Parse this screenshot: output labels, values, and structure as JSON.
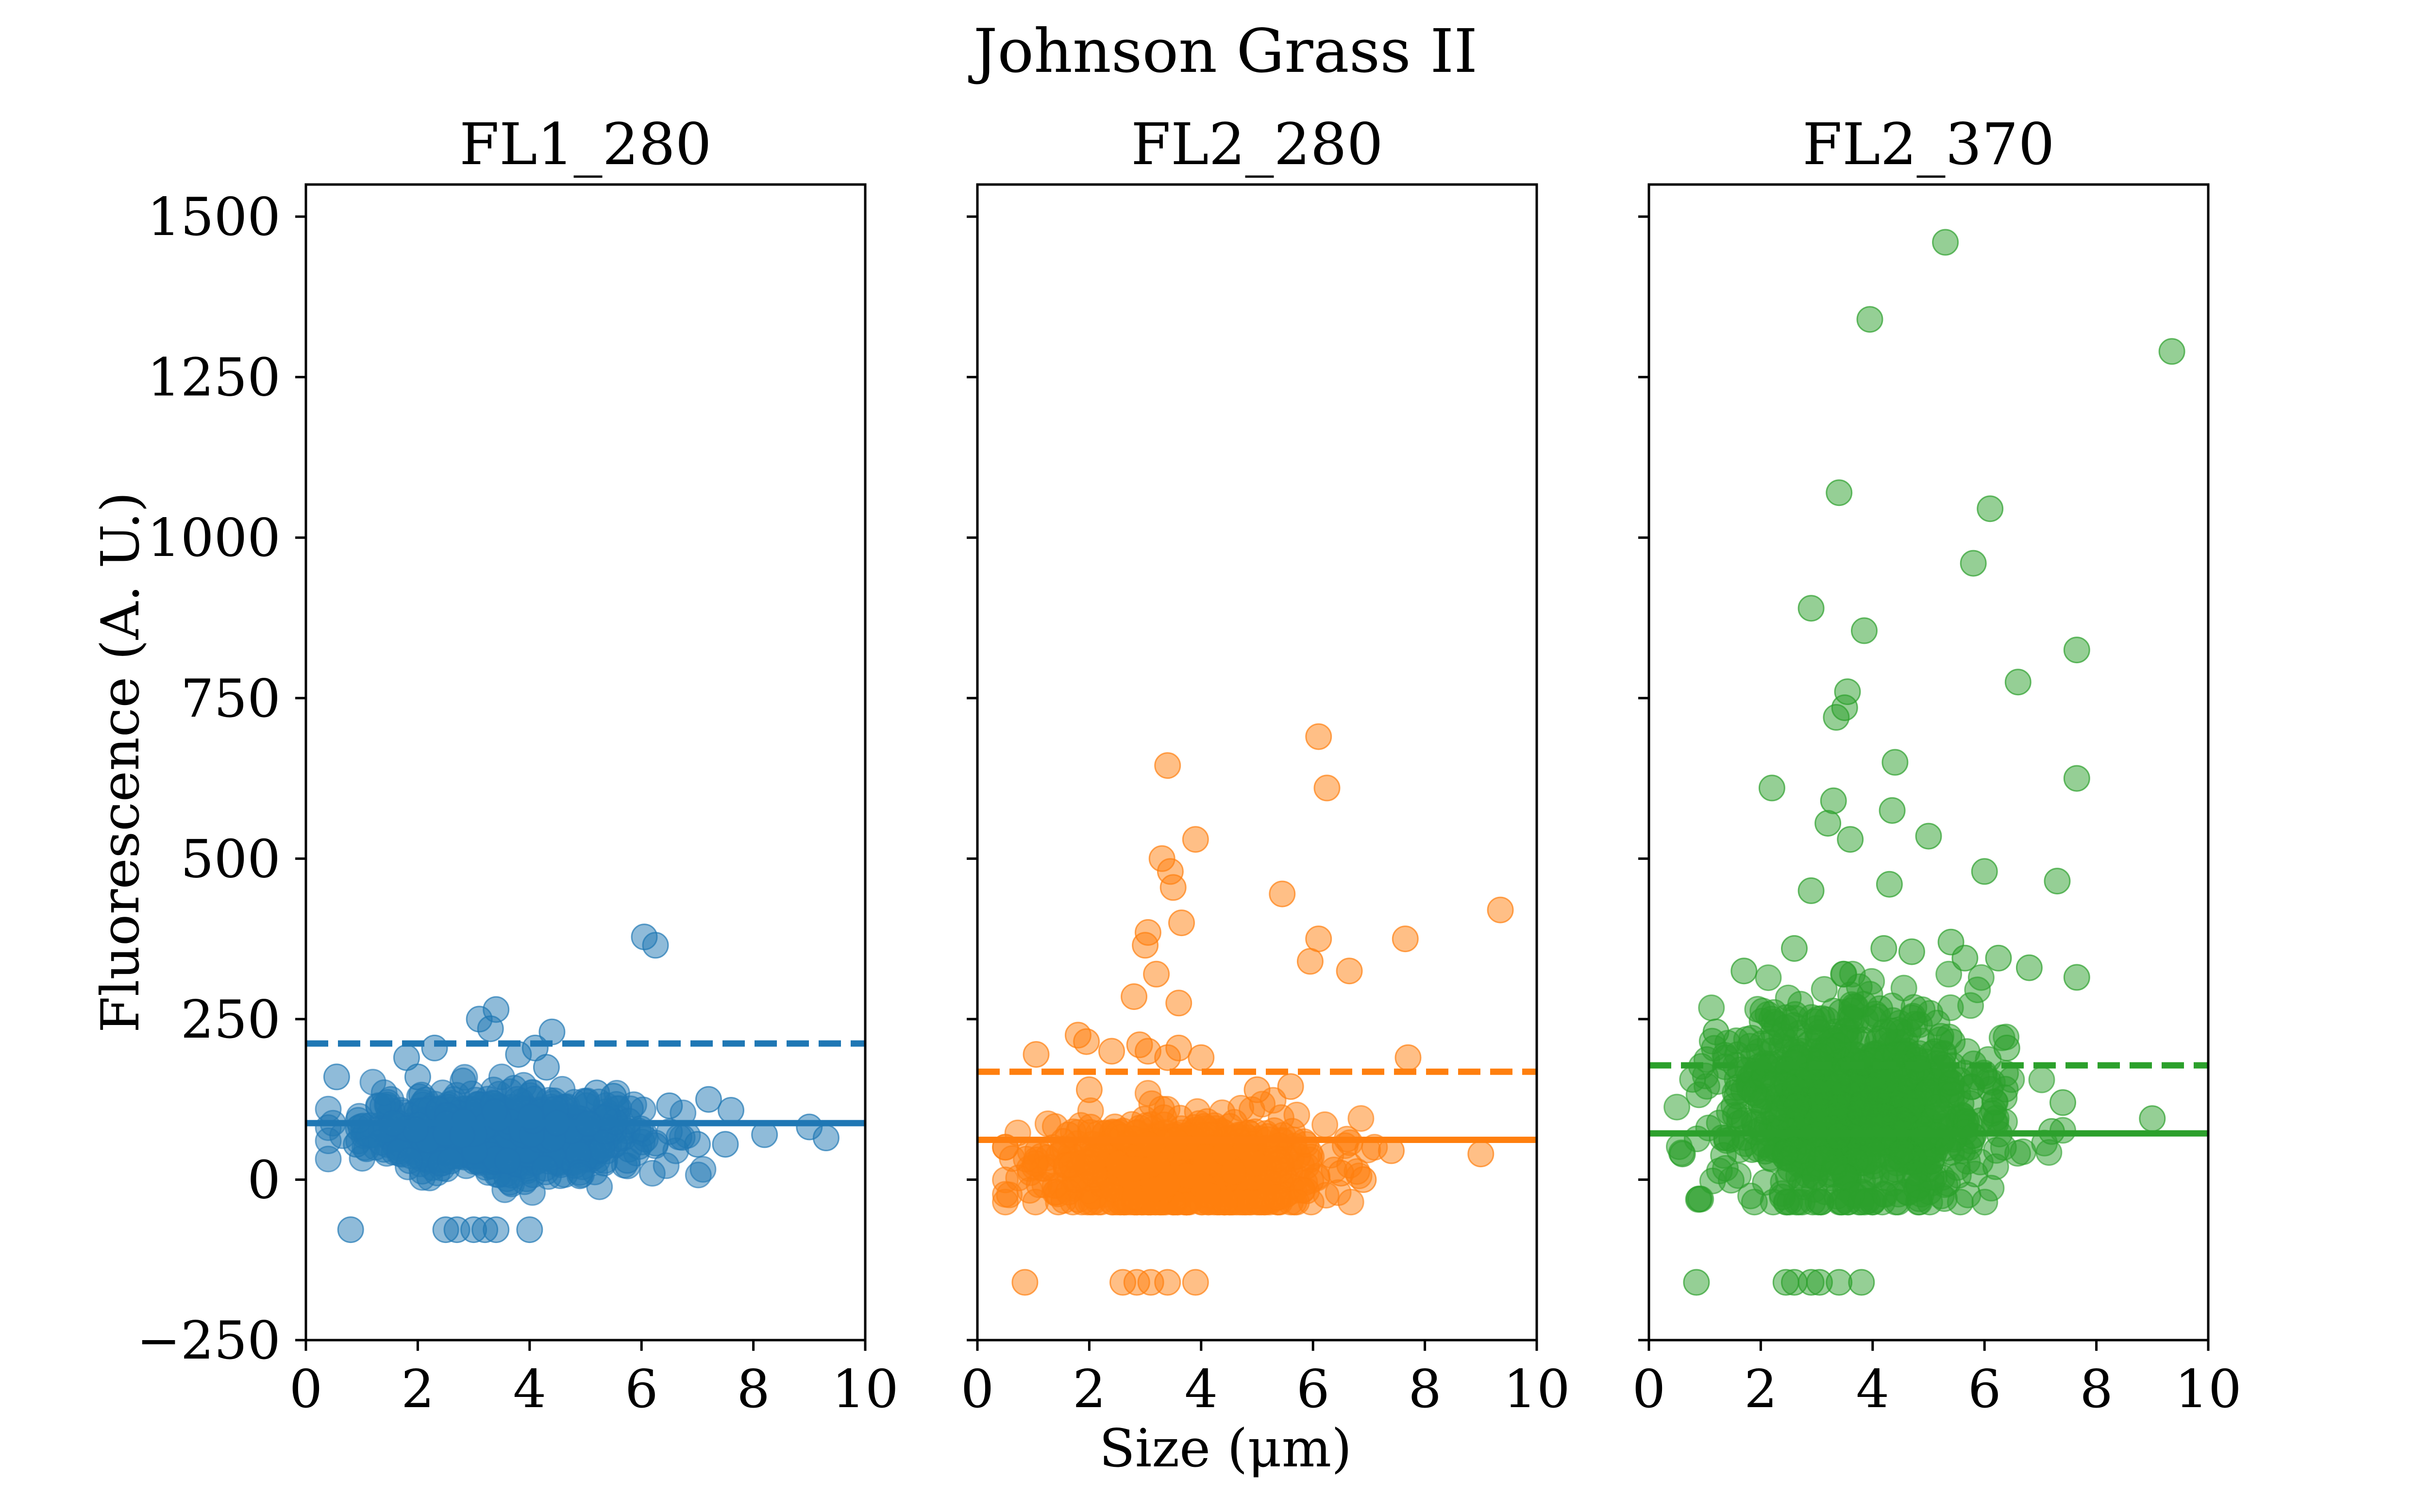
{
  "figure": {
    "title": "Johnson Grass II",
    "xlabel": "Size (μm)",
    "ylabel": "Fluorescence (A. U.)"
  },
  "chart_data": [
    {
      "type": "scatter",
      "title": "FL1_280",
      "color": "#1f77b4",
      "xlim": [
        0,
        10
      ],
      "ylim": [
        -250,
        1550
      ],
      "xticks": [
        0,
        2,
        4,
        6,
        8,
        10
      ],
      "yticks": [
        -250,
        0,
        250,
        500,
        750,
        1000,
        1250,
        1500
      ],
      "xticklabels": [
        "0",
        "2",
        "4",
        "6",
        "8",
        "10"
      ],
      "yticklabels": [
        "−250",
        "0",
        "250",
        "500",
        "750",
        "1000",
        "1250",
        "1500"
      ],
      "solid_line_y": 88,
      "dashed_line_y": 212,
      "cluster": {
        "x_center": 3.5,
        "x_spread": 1.2,
        "x_min": 0.4,
        "x_max": 7.8,
        "y_center": 70,
        "y_spread": 30,
        "y_min": -20,
        "y_max": 160,
        "count": 850
      },
      "points": [
        [
          0.55,
          160
        ],
        [
          0.8,
          -78
        ],
        [
          1.8,
          190
        ],
        [
          2.0,
          160
        ],
        [
          2.3,
          205
        ],
        [
          3.1,
          250
        ],
        [
          3.4,
          265
        ],
        [
          3.3,
          235
        ],
        [
          4.1,
          205
        ],
        [
          4.4,
          230
        ],
        [
          4.3,
          175
        ],
        [
          3.8,
          195
        ],
        [
          2.5,
          -78
        ],
        [
          2.7,
          -78
        ],
        [
          3.0,
          -78
        ],
        [
          3.2,
          -78
        ],
        [
          3.4,
          -78
        ],
        [
          4.0,
          -78
        ],
        [
          6.05,
          378
        ],
        [
          6.25,
          365
        ],
        [
          7.2,
          125
        ],
        [
          7.6,
          108
        ],
        [
          7.0,
          55
        ],
        [
          7.5,
          55
        ],
        [
          8.2,
          70
        ],
        [
          9.0,
          82
        ],
        [
          9.3,
          65
        ],
        [
          0.9,
          55
        ],
        [
          1.2,
          70
        ],
        [
          5.5,
          130
        ],
        [
          6.5,
          115
        ],
        [
          5.2,
          135
        ]
      ]
    },
    {
      "type": "scatter",
      "title": "FL2_280",
      "color": "#ff7f0e",
      "xlim": [
        0,
        10
      ],
      "ylim": [
        -250,
        1550
      ],
      "xticks": [
        0,
        2,
        4,
        6,
        8,
        10
      ],
      "yticks": [
        -250,
        0,
        250,
        500,
        750,
        1000,
        1250,
        1500
      ],
      "xticklabels": [
        "0",
        "2",
        "4",
        "6",
        "8",
        "10"
      ],
      "yticklabels": [
        "−250",
        "0",
        "250",
        "500",
        "750",
        "1000",
        "1250",
        "1500"
      ],
      "solid_line_y": 62,
      "dashed_line_y": 168,
      "cluster": {
        "x_center": 3.6,
        "x_spread": 1.2,
        "x_min": 0.5,
        "x_max": 7.2,
        "y_center": 15,
        "y_spread": 38,
        "y_min": -35,
        "y_max": 175,
        "count": 900
      },
      "points": [
        [
          0.85,
          -160
        ],
        [
          2.6,
          -160
        ],
        [
          2.85,
          -160
        ],
        [
          3.1,
          -160
        ],
        [
          3.4,
          -160
        ],
        [
          3.9,
          -160
        ],
        [
          1.05,
          195
        ],
        [
          1.8,
          225
        ],
        [
          1.95,
          215
        ],
        [
          2.4,
          200
        ],
        [
          2.9,
          210
        ],
        [
          3.05,
          200
        ],
        [
          3.4,
          190
        ],
        [
          3.6,
          205
        ],
        [
          4.0,
          190
        ],
        [
          5.0,
          140
        ],
        [
          5.6,
          145
        ],
        [
          7.7,
          190
        ],
        [
          2.8,
          285
        ],
        [
          3.0,
          365
        ],
        [
          3.05,
          385
        ],
        [
          3.2,
          320
        ],
        [
          3.6,
          275
        ],
        [
          3.65,
          400
        ],
        [
          3.3,
          500
        ],
        [
          3.45,
          480
        ],
        [
          3.5,
          455
        ],
        [
          3.9,
          530
        ],
        [
          3.4,
          645
        ],
        [
          5.45,
          445
        ],
        [
          5.95,
          340
        ],
        [
          6.1,
          375
        ],
        [
          6.1,
          690
        ],
        [
          6.25,
          610
        ],
        [
          6.65,
          325
        ],
        [
          7.65,
          375
        ],
        [
          9.35,
          420
        ],
        [
          9.0,
          40
        ],
        [
          7.4,
          45
        ],
        [
          2.0,
          140
        ],
        [
          6.5,
          10
        ],
        [
          6.9,
          0
        ]
      ]
    },
    {
      "type": "scatter",
      "title": "FL2_370",
      "color": "#2ca02c",
      "xlim": [
        0,
        10
      ],
      "ylim": [
        -250,
        1550
      ],
      "xticks": [
        0,
        2,
        4,
        6,
        8,
        10
      ],
      "yticks": [
        -250,
        0,
        250,
        500,
        750,
        1000,
        1250,
        1500
      ],
      "xticklabels": [
        "0",
        "2",
        "4",
        "6",
        "8",
        "10"
      ],
      "yticklabels": [
        "−250",
        "0",
        "250",
        "500",
        "750",
        "1000",
        "1250",
        "1500"
      ],
      "solid_line_y": 72,
      "dashed_line_y": 178,
      "cluster": {
        "x_center": 3.7,
        "x_spread": 1.2,
        "x_min": 0.5,
        "x_max": 7.4,
        "y_center": 110,
        "y_spread": 80,
        "y_min": -35,
        "y_max": 320,
        "count": 1000
      },
      "points": [
        [
          0.85,
          -160
        ],
        [
          2.45,
          -160
        ],
        [
          2.6,
          -160
        ],
        [
          2.9,
          -160
        ],
        [
          3.05,
          -160
        ],
        [
          3.4,
          -160
        ],
        [
          3.8,
          -160
        ],
        [
          1.2,
          230
        ],
        [
          1.7,
          325
        ],
        [
          2.2,
          610
        ],
        [
          2.6,
          360
        ],
        [
          2.9,
          450
        ],
        [
          2.9,
          890
        ],
        [
          3.2,
          555
        ],
        [
          3.3,
          590
        ],
        [
          3.35,
          720
        ],
        [
          3.5,
          735
        ],
        [
          3.55,
          760
        ],
        [
          3.4,
          1070
        ],
        [
          3.6,
          530
        ],
        [
          3.85,
          855
        ],
        [
          3.95,
          1340
        ],
        [
          4.3,
          460
        ],
        [
          4.35,
          575
        ],
        [
          4.4,
          650
        ],
        [
          4.2,
          360
        ],
        [
          4.7,
          355
        ],
        [
          5.0,
          535
        ],
        [
          5.3,
          1460
        ],
        [
          5.4,
          370
        ],
        [
          5.65,
          345
        ],
        [
          5.8,
          960
        ],
        [
          6.0,
          480
        ],
        [
          6.1,
          1045
        ],
        [
          6.25,
          345
        ],
        [
          6.4,
          205
        ],
        [
          6.6,
          775
        ],
        [
          6.8,
          330
        ],
        [
          7.3,
          465
        ],
        [
          7.65,
          825
        ],
        [
          7.65,
          625
        ],
        [
          7.65,
          315
        ],
        [
          7.4,
          120
        ],
        [
          9.35,
          1290
        ],
        [
          9.0,
          95
        ],
        [
          7.2,
          75
        ],
        [
          0.9,
          -30
        ],
        [
          0.6,
          40
        ]
      ]
    }
  ]
}
